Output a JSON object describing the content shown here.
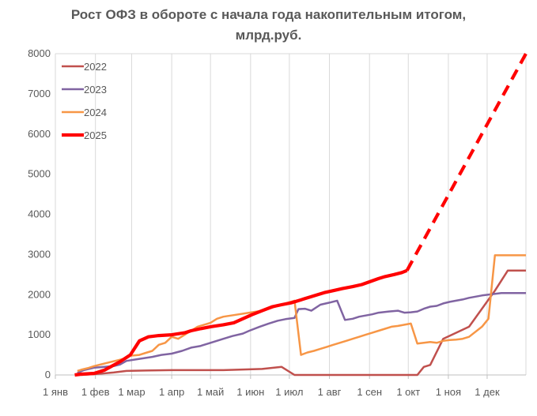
{
  "chart_data": {
    "type": "line",
    "title_line1": "Рост ОФЗ в обороте с начала года накопительным итогом,",
    "title_line2": "млрд.руб.",
    "x_tick_labels": [
      "1 янв",
      "1 фев",
      "1 мар",
      "1 апр",
      "1 май",
      "1 июн",
      "1 июл",
      "1 авг",
      "1 сен",
      "1 окт",
      "1 ноя",
      "1 дек"
    ],
    "x_tick_days": [
      0,
      31,
      59,
      90,
      120,
      151,
      181,
      212,
      243,
      273,
      304,
      334
    ],
    "xlim": [
      0,
      364
    ],
    "y_ticks": [
      0,
      1000,
      2000,
      3000,
      4000,
      5000,
      6000,
      7000,
      8000
    ],
    "ylim": [
      0,
      8000
    ],
    "grid": "vertical",
    "legend_position": "top-left",
    "series": [
      {
        "name": "2022",
        "color": "#C0504D",
        "width": 2.5,
        "x": [
          20,
          30,
          45,
          55,
          70,
          90,
          110,
          130,
          160,
          175,
          185,
          280,
          285,
          290,
          300,
          320,
          340,
          350,
          364
        ],
        "y": [
          0,
          20,
          60,
          100,
          110,
          120,
          120,
          120,
          150,
          200,
          0,
          0,
          200,
          250,
          900,
          1200,
          2100,
          2600,
          2600
        ]
      },
      {
        "name": "2023",
        "color": "#8064A2",
        "width": 2.5,
        "x": [
          17,
          22,
          30,
          38,
          45,
          50,
          55,
          65,
          75,
          82,
          90,
          98,
          105,
          112,
          120,
          130,
          137,
          145,
          150,
          158,
          165,
          172,
          178,
          185,
          188,
          193,
          198,
          205,
          212,
          218,
          224,
          230,
          235,
          240,
          245,
          250,
          258,
          265,
          270,
          275,
          280,
          285,
          290,
          295,
          300,
          305,
          310,
          315,
          320,
          325,
          330,
          335,
          340,
          345,
          350,
          355,
          364
        ],
        "y": [
          50,
          120,
          180,
          200,
          220,
          260,
          350,
          400,
          450,
          500,
          530,
          600,
          680,
          720,
          800,
          900,
          970,
          1030,
          1100,
          1200,
          1280,
          1350,
          1390,
          1420,
          1640,
          1650,
          1600,
          1750,
          1800,
          1850,
          1370,
          1400,
          1450,
          1480,
          1510,
          1550,
          1580,
          1600,
          1550,
          1560,
          1580,
          1650,
          1700,
          1720,
          1780,
          1820,
          1850,
          1880,
          1920,
          1950,
          1980,
          2000,
          2020,
          2040,
          2040,
          2040,
          2040
        ]
      },
      {
        "name": "2024",
        "color": "#F79646",
        "width": 2.5,
        "x": [
          17,
          20,
          25,
          30,
          40,
          50,
          55,
          58,
          65,
          70,
          75,
          80,
          85,
          90,
          95,
          100,
          105,
          110,
          115,
          120,
          125,
          130,
          140,
          150,
          160,
          170,
          180,
          185,
          190,
          195,
          200,
          205,
          210,
          215,
          220,
          225,
          230,
          235,
          240,
          245,
          250,
          255,
          260,
          265,
          270,
          275,
          280,
          285,
          290,
          295,
          300,
          305,
          310,
          315,
          320,
          330,
          335,
          340,
          364
        ],
        "y": [
          100,
          130,
          170,
          220,
          300,
          380,
          420,
          480,
          500,
          550,
          600,
          750,
          800,
          950,
          900,
          1000,
          1100,
          1200,
          1250,
          1300,
          1400,
          1450,
          1500,
          1550,
          1600,
          1700,
          1800,
          1850,
          500,
          560,
          600,
          650,
          700,
          750,
          800,
          850,
          900,
          950,
          1000,
          1050,
          1100,
          1150,
          1200,
          1220,
          1250,
          1280,
          780,
          800,
          820,
          800,
          850,
          870,
          880,
          900,
          950,
          1200,
          1400,
          2980,
          2980
        ]
      },
      {
        "name": "2025",
        "color": "#FF0000",
        "width": 4.2,
        "x": [
          15,
          20,
          25,
          30,
          38,
          50,
          58,
          65,
          72,
          80,
          90,
          100,
          105,
          112,
          120,
          130,
          138,
          145,
          152,
          160,
          168,
          175,
          183,
          188,
          193,
          198,
          203,
          208,
          215,
          222,
          230,
          237,
          243,
          250,
          255,
          262,
          268,
          272
        ],
        "y": [
          0,
          20,
          30,
          40,
          120,
          330,
          500,
          850,
          950,
          980,
          1000,
          1050,
          1100,
          1150,
          1200,
          1250,
          1300,
          1400,
          1500,
          1600,
          1700,
          1750,
          1800,
          1850,
          1900,
          1950,
          2000,
          2050,
          2100,
          2150,
          2200,
          2250,
          2320,
          2400,
          2450,
          2500,
          2550,
          2600
        ]
      },
      {
        "name": "2025 прогноз",
        "color": "#FF0000",
        "width": 4.2,
        "dashed": true,
        "in_legend": false,
        "x": [
          272,
          364
        ],
        "y": [
          2600,
          8000
        ]
      }
    ]
  }
}
